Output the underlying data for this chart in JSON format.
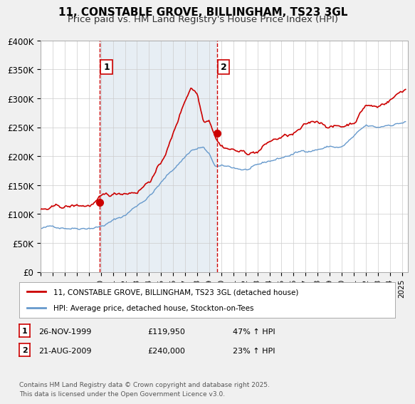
{
  "title": "11, CONSTABLE GROVE, BILLINGHAM, TS23 3GL",
  "subtitle": "Price paid vs. HM Land Registry's House Price Index (HPI)",
  "xlim": [
    1995,
    2025.5
  ],
  "ylim": [
    0,
    400000
  ],
  "yticks": [
    0,
    50000,
    100000,
    150000,
    200000,
    250000,
    300000,
    350000,
    400000
  ],
  "ytick_labels": [
    "£0",
    "£50K",
    "£100K",
    "£150K",
    "£200K",
    "£250K",
    "£300K",
    "£350K",
    "£400K"
  ],
  "xticks": [
    1995,
    1996,
    1997,
    1998,
    1999,
    2000,
    2001,
    2002,
    2003,
    2004,
    2005,
    2006,
    2007,
    2008,
    2009,
    2010,
    2011,
    2012,
    2013,
    2014,
    2015,
    2016,
    2017,
    2018,
    2019,
    2020,
    2021,
    2022,
    2023,
    2024,
    2025
  ],
  "vline1_x": 1999.9,
  "vline2_x": 2009.64,
  "marker1_x": 1999.9,
  "marker1_y": 119950,
  "marker2_x": 2009.64,
  "marker2_y": 240000,
  "legend_line1": "11, CONSTABLE GROVE, BILLINGHAM, TS23 3GL (detached house)",
  "legend_line2": "HPI: Average price, detached house, Stockton-on-Tees",
  "table_row1": [
    "1",
    "26-NOV-1999",
    "£119,950",
    "47% ↑ HPI"
  ],
  "table_row2": [
    "2",
    "21-AUG-2009",
    "£240,000",
    "23% ↑ HPI"
  ],
  "footer": "Contains HM Land Registry data © Crown copyright and database right 2025.\nThis data is licensed under the Open Government Licence v3.0.",
  "red_color": "#cc0000",
  "blue_color": "#6699cc",
  "bg_color": "#dde8f0",
  "plot_bg": "#ffffff",
  "grid_color": "#cccccc",
  "title_fontsize": 11,
  "subtitle_fontsize": 9.5,
  "blue_waypoints_t": [
    1995,
    1998,
    2000,
    2002,
    2004,
    2006,
    2007.5,
    2008.5,
    2009,
    2009.5,
    2010,
    2011,
    2012,
    2013,
    2014,
    2015,
    2016,
    2017,
    2018,
    2019,
    2020,
    2021,
    2022,
    2023,
    2024,
    2025.3
  ],
  "blue_waypoints_v": [
    75000,
    80000,
    87000,
    105000,
    140000,
    185000,
    220000,
    225000,
    210000,
    190000,
    188000,
    185000,
    182000,
    185000,
    192000,
    198000,
    205000,
    210000,
    215000,
    220000,
    218000,
    235000,
    250000,
    245000,
    252000,
    258000
  ],
  "red_waypoints_t": [
    1995,
    1997,
    1999,
    1999.9,
    2001,
    2003,
    2004,
    2005,
    2006,
    2007,
    2007.5,
    2008,
    2008.5,
    2009,
    2009.64,
    2010,
    2011,
    2012,
    2013,
    2014,
    2015,
    2016,
    2017,
    2018,
    2019,
    2020,
    2021,
    2022,
    2023,
    2024,
    2025.3
  ],
  "red_waypoints_v": [
    108000,
    108000,
    110000,
    119950,
    122000,
    135000,
    155000,
    185000,
    235000,
    295000,
    320000,
    310000,
    265000,
    270000,
    240000,
    230000,
    225000,
    218000,
    222000,
    238000,
    245000,
    248000,
    258000,
    265000,
    260000,
    258000,
    268000,
    300000,
    295000,
    310000,
    330000
  ]
}
